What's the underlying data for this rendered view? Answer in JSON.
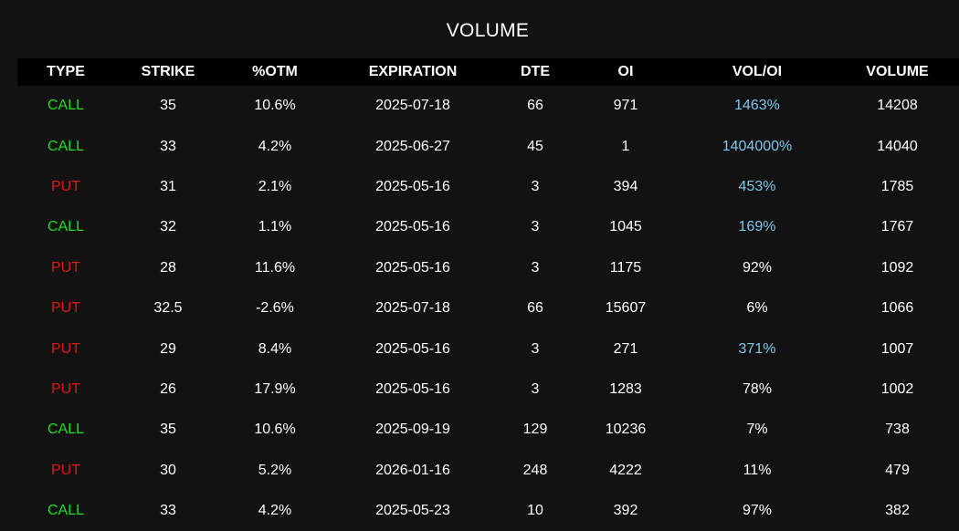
{
  "title": "VOLUME",
  "colors": {
    "background": "#121212",
    "header_bg": "#000000",
    "call": "#22dd22",
    "put": "#e01818",
    "highlight": "#7ec8ef",
    "text": "#ffffff"
  },
  "columns": [
    "TYPE",
    "STRIKE",
    "%OTM",
    "EXPIRATION",
    "DTE",
    "OI",
    "VOL/OI",
    "VOLUME"
  ],
  "rows": [
    {
      "type": "CALL",
      "strike": "35",
      "otm": "10.6%",
      "expiration": "2025-07-18",
      "dte": "66",
      "oi": "971",
      "vol_oi": "1463%",
      "vol_oi_highlight": true,
      "volume": "14208"
    },
    {
      "type": "CALL",
      "strike": "33",
      "otm": "4.2%",
      "expiration": "2025-06-27",
      "dte": "45",
      "oi": "1",
      "vol_oi": "1404000%",
      "vol_oi_highlight": true,
      "volume": "14040"
    },
    {
      "type": "PUT",
      "strike": "31",
      "otm": "2.1%",
      "expiration": "2025-05-16",
      "dte": "3",
      "oi": "394",
      "vol_oi": "453%",
      "vol_oi_highlight": true,
      "volume": "1785"
    },
    {
      "type": "CALL",
      "strike": "32",
      "otm": "1.1%",
      "expiration": "2025-05-16",
      "dte": "3",
      "oi": "1045",
      "vol_oi": "169%",
      "vol_oi_highlight": true,
      "volume": "1767"
    },
    {
      "type": "PUT",
      "strike": "28",
      "otm": "11.6%",
      "expiration": "2025-05-16",
      "dte": "3",
      "oi": "1175",
      "vol_oi": "92%",
      "vol_oi_highlight": false,
      "volume": "1092"
    },
    {
      "type": "PUT",
      "strike": "32.5",
      "otm": "-2.6%",
      "expiration": "2025-07-18",
      "dte": "66",
      "oi": "15607",
      "vol_oi": "6%",
      "vol_oi_highlight": false,
      "volume": "1066"
    },
    {
      "type": "PUT",
      "strike": "29",
      "otm": "8.4%",
      "expiration": "2025-05-16",
      "dte": "3",
      "oi": "271",
      "vol_oi": "371%",
      "vol_oi_highlight": true,
      "volume": "1007"
    },
    {
      "type": "PUT",
      "strike": "26",
      "otm": "17.9%",
      "expiration": "2025-05-16",
      "dte": "3",
      "oi": "1283",
      "vol_oi": "78%",
      "vol_oi_highlight": false,
      "volume": "1002"
    },
    {
      "type": "CALL",
      "strike": "35",
      "otm": "10.6%",
      "expiration": "2025-09-19",
      "dte": "129",
      "oi": "10236",
      "vol_oi": "7%",
      "vol_oi_highlight": false,
      "volume": "738"
    },
    {
      "type": "PUT",
      "strike": "30",
      "otm": "5.2%",
      "expiration": "2026-01-16",
      "dte": "248",
      "oi": "4222",
      "vol_oi": "11%",
      "vol_oi_highlight": false,
      "volume": "479"
    },
    {
      "type": "CALL",
      "strike": "33",
      "otm": "4.2%",
      "expiration": "2025-05-23",
      "dte": "10",
      "oi": "392",
      "vol_oi": "97%",
      "vol_oi_highlight": false,
      "volume": "382"
    }
  ]
}
